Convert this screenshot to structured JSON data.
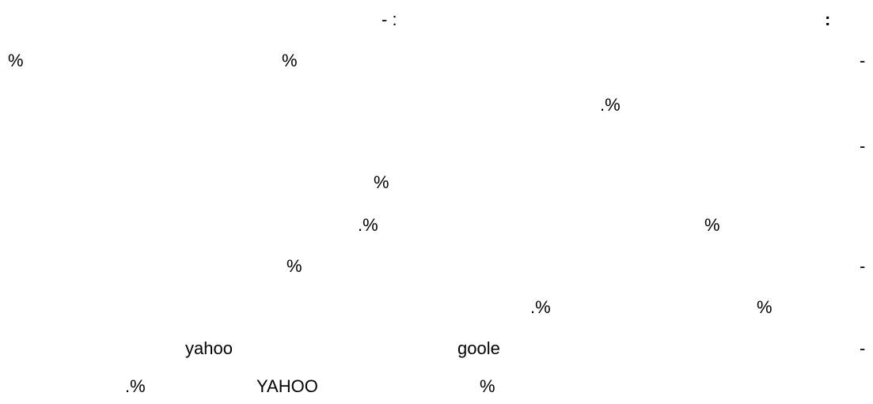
{
  "header": {
    "colon_right": ":",
    "center_mark": "- :"
  },
  "lines": [
    {
      "dash": "-",
      "items": [
        "%",
        "%"
      ]
    },
    {
      "items": [
        ".%"
      ]
    },
    {
      "dash": "-"
    },
    {
      "items": [
        "%"
      ]
    },
    {
      "items": [
        ".%",
        "%"
      ]
    },
    {
      "dash": "-",
      "items": [
        "%"
      ]
    },
    {
      "items": [
        ".%",
        "%"
      ]
    },
    {
      "dash": "-",
      "items": [
        "yahoo",
        "goole"
      ]
    },
    {
      "items": [
        ".%",
        "YAHOO",
        "%"
      ]
    }
  ]
}
